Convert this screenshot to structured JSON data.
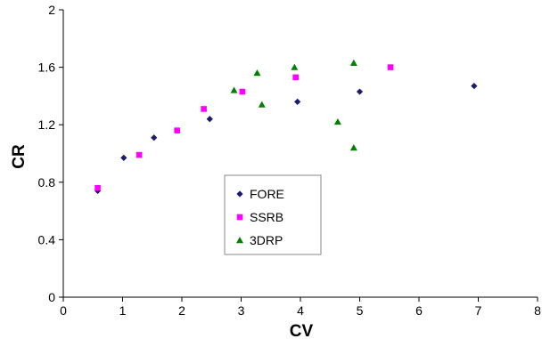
{
  "chart_data": {
    "type": "scatter",
    "title": "",
    "xlabel": "CV",
    "ylabel": "CR",
    "xlim": [
      0,
      8
    ],
    "ylim": [
      0,
      2
    ],
    "x_ticks": [
      0,
      1,
      2,
      3,
      4,
      5,
      6,
      7,
      8
    ],
    "y_ticks": [
      0,
      0.4,
      0.8,
      1.2,
      1.6,
      2
    ],
    "x_tick_labels": [
      "0",
      "1",
      "2",
      "3",
      "4",
      "5",
      "6",
      "7",
      "8"
    ],
    "y_tick_labels": [
      "0",
      "0.4",
      "0.8",
      "1.2",
      "1.6",
      "2"
    ],
    "grid": false,
    "legend_position": "center-left",
    "series": [
      {
        "name": "FORE",
        "marker": "diamond",
        "color": "#1a1a6e",
        "points": [
          [
            0.58,
            0.74
          ],
          [
            1.02,
            0.97
          ],
          [
            1.53,
            1.11
          ],
          [
            2.47,
            1.24
          ],
          [
            3.95,
            1.36
          ],
          [
            5.0,
            1.43
          ],
          [
            6.93,
            1.47
          ]
        ]
      },
      {
        "name": "SSRB",
        "marker": "square",
        "color": "#ff00ff",
        "points": [
          [
            0.58,
            0.76
          ],
          [
            1.28,
            0.99
          ],
          [
            1.92,
            1.16
          ],
          [
            2.37,
            1.31
          ],
          [
            3.02,
            1.43
          ],
          [
            3.92,
            1.53
          ],
          [
            5.52,
            1.6
          ]
        ]
      },
      {
        "name": "3DRP",
        "marker": "triangle",
        "color": "#008000",
        "points": [
          [
            2.88,
            1.44
          ],
          [
            3.27,
            1.56
          ],
          [
            3.35,
            1.34
          ],
          [
            3.9,
            1.6
          ],
          [
            4.63,
            1.22
          ],
          [
            4.9,
            1.63
          ],
          [
            4.9,
            1.04
          ]
        ]
      }
    ]
  }
}
